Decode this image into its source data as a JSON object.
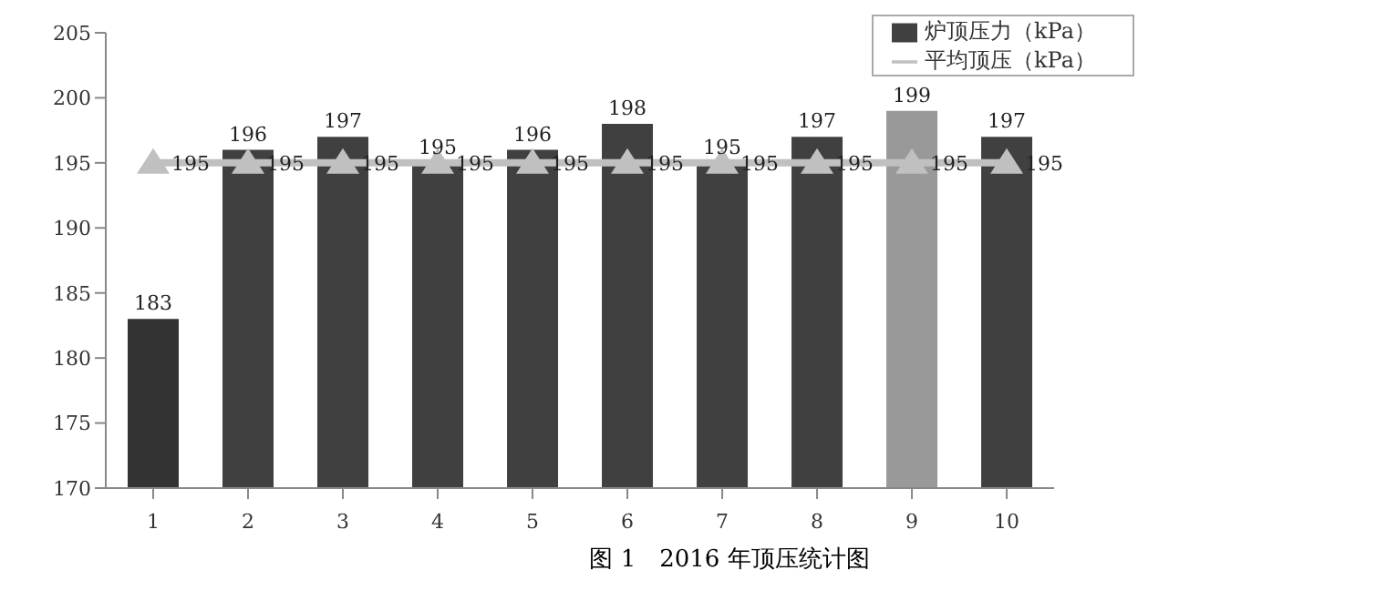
{
  "chart_data": {
    "type": "bar",
    "title": "图 1　2016 年顶压统计图",
    "categories": [
      "1",
      "2",
      "3",
      "4",
      "5",
      "6",
      "7",
      "8",
      "9",
      "10"
    ],
    "series": [
      {
        "name": "炉顶压力（kPa）",
        "colors": [
          "#333333",
          "#404040",
          "#404040",
          "#404040",
          "#404040",
          "#404040",
          "#404040",
          "#404040",
          "#999999",
          "#404040"
        ],
        "values": [
          183,
          196,
          197,
          195,
          196,
          198,
          195,
          197,
          199,
          197
        ]
      },
      {
        "name": "平均顶压（kPa）",
        "type": "line",
        "color": "#c0c0c0",
        "marker": "triangle",
        "values": [
          195,
          195,
          195,
          195,
          195,
          195,
          195,
          195,
          195,
          195
        ]
      }
    ],
    "ylim": [
      170,
      205
    ],
    "yticks": [
      170,
      175,
      180,
      185,
      190,
      195,
      200,
      205
    ],
    "grid": false,
    "legend": "top right",
    "data_labels": true
  }
}
